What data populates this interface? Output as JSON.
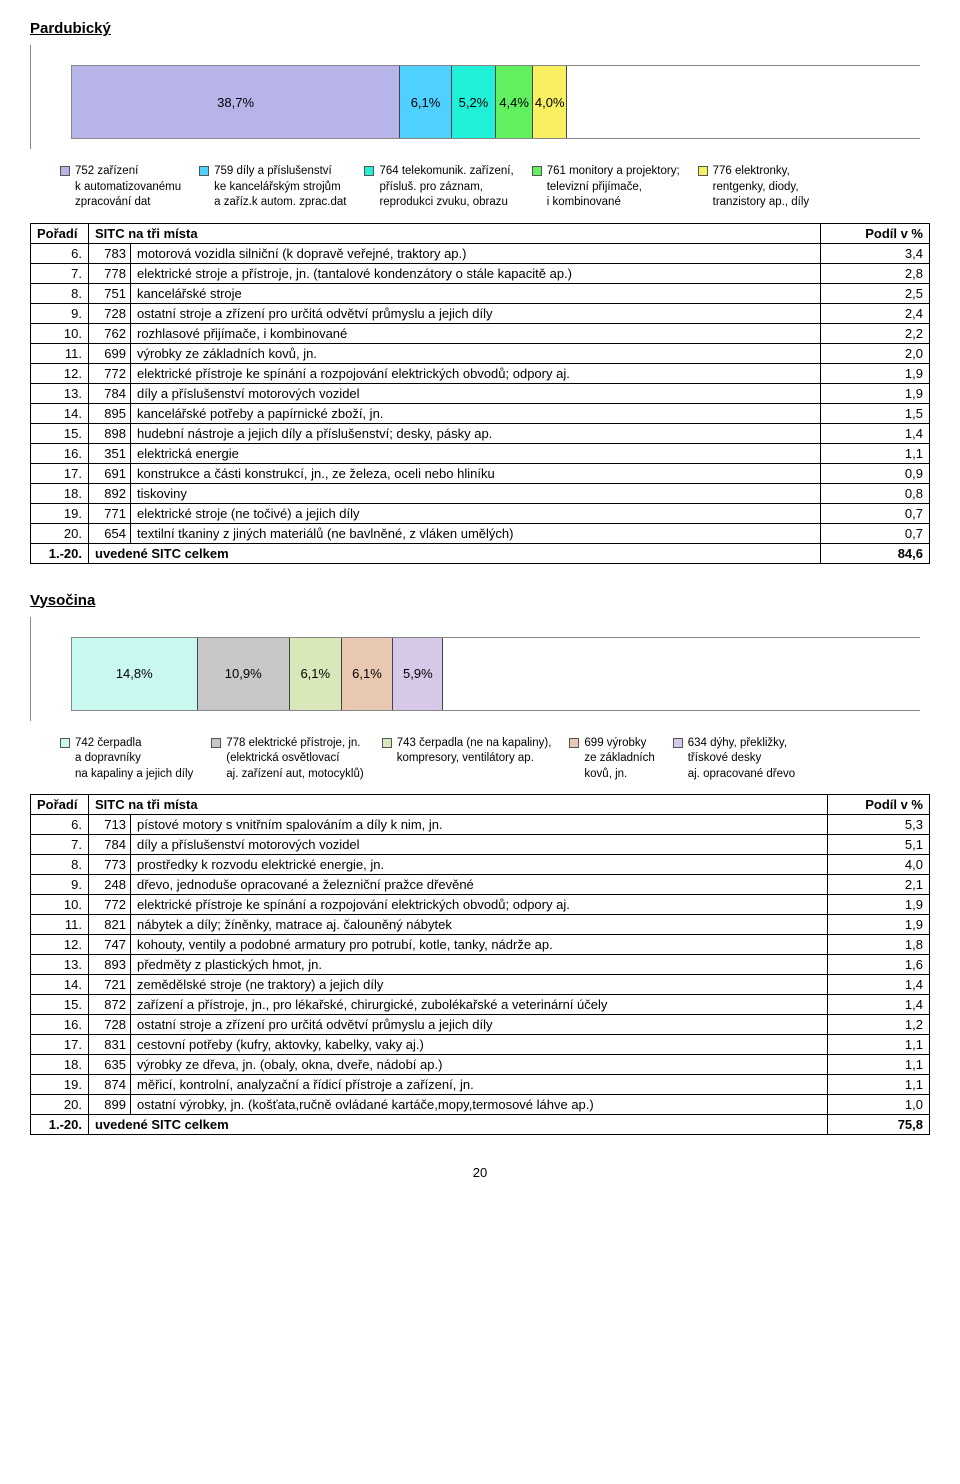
{
  "page_number": "20",
  "pardubicky": {
    "title": "Pardubický",
    "chart": {
      "type": "stacked-bar-100",
      "segments": [
        {
          "label": "38,7%",
          "value": 38.7,
          "color": "#b7b5e8"
        },
        {
          "label": "6,1%",
          "value": 6.1,
          "color": "#4fd0ff"
        },
        {
          "label": "5,2%",
          "value": 5.2,
          "color": "#20f0d8"
        },
        {
          "label": "4,4%",
          "value": 4.4,
          "color": "#60f060"
        },
        {
          "label": "4,0%",
          "value": 4.0,
          "color": "#f8f060"
        }
      ],
      "remainder_color": "#ffffff",
      "background": "#ffffff",
      "border_color": "#888888"
    },
    "legend": [
      {
        "color": "#b7b5e8",
        "text": "752 zařízení\nk automatizovanému\nzpracování dat"
      },
      {
        "color": "#4fd0ff",
        "text": "759 díly a příslušenství\nke kancelářským strojům\na zaříz.k autom. zprac.dat"
      },
      {
        "color": "#20f0d8",
        "text": "764 telekomunik. zařízení,\npřísluš. pro záznam,\nreprodukci zvuku, obrazu"
      },
      {
        "color": "#60f060",
        "text": "761 monitory a projektory;\ntelevizní přijímače,\ni kombinované"
      },
      {
        "color": "#f8f060",
        "text": "776 elektronky,\nrentgenky, diody,\ntranzistory ap., díly"
      }
    ],
    "table": {
      "header_poradi": "Pořadí",
      "header_sitc": "SITC na tři místa",
      "header_podil": "Podíl v %",
      "rows": [
        {
          "poradi": "6.",
          "code": "783",
          "desc": "motorová vozidla silniční (k dopravě veřejné, traktory ap.)",
          "podil": "3,4"
        },
        {
          "poradi": "7.",
          "code": "778",
          "desc": "elektrické stroje a přístroje, jn. (tantalové kondenzátory o stále kapacitě ap.)",
          "podil": "2,8"
        },
        {
          "poradi": "8.",
          "code": "751",
          "desc": "kancelářské stroje",
          "podil": "2,5"
        },
        {
          "poradi": "9.",
          "code": "728",
          "desc": "ostatní stroje a zřízení pro určitá odvětví průmyslu a jejich díly",
          "podil": "2,4"
        },
        {
          "poradi": "10.",
          "code": "762",
          "desc": "rozhlasové přijímače, i kombinované",
          "podil": "2,2"
        },
        {
          "poradi": "11.",
          "code": "699",
          "desc": "výrobky ze základních kovů, jn.",
          "podil": "2,0"
        },
        {
          "poradi": "12.",
          "code": "772",
          "desc": "elektrické přístroje ke spínání a rozpojování elektrických obvodů; odpory aj.",
          "podil": "1,9"
        },
        {
          "poradi": "13.",
          "code": "784",
          "desc": "díly a příslušenství motorových vozidel",
          "podil": "1,9"
        },
        {
          "poradi": "14.",
          "code": "895",
          "desc": "kancelářské potřeby a papírnické zboží, jn.",
          "podil": "1,5"
        },
        {
          "poradi": "15.",
          "code": "898",
          "desc": "hudební nástroje a jejich díly a příslušenství; desky, pásky ap.",
          "podil": "1,4"
        },
        {
          "poradi": "16.",
          "code": "351",
          "desc": "elektrická energie",
          "podil": "1,1"
        },
        {
          "poradi": "17.",
          "code": "691",
          "desc": "konstrukce a části konstrukcí, jn., ze železa, oceli nebo hliníku",
          "podil": "0,9"
        },
        {
          "poradi": "18.",
          "code": "892",
          "desc": "tiskoviny",
          "podil": "0,8"
        },
        {
          "poradi": "19.",
          "code": "771",
          "desc": "elektrické stroje (ne točivé) a jejich díly",
          "podil": "0,7"
        },
        {
          "poradi": "20.",
          "code": "654",
          "desc": "textilní tkaniny z jiných materiálů (ne bavlněné, z vláken umělých)",
          "podil": "0,7"
        }
      ],
      "total_poradi": "1.-20.",
      "total_label": "uvedené SITC celkem",
      "total_value": "84,6"
    }
  },
  "vysocina": {
    "title": "Vysočina",
    "chart": {
      "type": "stacked-bar-100",
      "segments": [
        {
          "label": "14,8%",
          "value": 14.8,
          "color": "#c8f8f0"
        },
        {
          "label": "10,9%",
          "value": 10.9,
          "color": "#c8c8c8"
        },
        {
          "label": "6,1%",
          "value": 6.1,
          "color": "#d8e8b8"
        },
        {
          "label": "6,1%",
          "value": 6.1,
          "color": "#e8c8b0"
        },
        {
          "label": "5,9%",
          "value": 5.9,
          "color": "#d8c8e8"
        }
      ],
      "remainder_color": "#ffffff",
      "background": "#ffffff",
      "border_color": "#888888"
    },
    "legend": [
      {
        "color": "#c8f8f0",
        "text": "742 čerpadla\na dopravníky\nna kapaliny a jejich díly"
      },
      {
        "color": "#c8c8c8",
        "text": "778 elektrické přístroje, jn.\n(elektrická osvětlovací\naj. zařízení aut, motocyklů)"
      },
      {
        "color": "#d8e8b8",
        "text": "743 čerpadla (ne na kapaliny),\nkompresory, ventilátory ap."
      },
      {
        "color": "#e8c8b0",
        "text": "699 výrobky\nze základních\nkovů, jn."
      },
      {
        "color": "#d8c8e8",
        "text": "634 dýhy, překližky,\ntřískové desky\naj. opracované dřevo"
      }
    ],
    "table": {
      "header_poradi": "Pořadí",
      "header_sitc": "SITC na tři místa",
      "header_podil": "Podíl v %",
      "rows": [
        {
          "poradi": "6.",
          "code": "713",
          "desc": "pístové motory s vnitřním spalováním a díly k nim, jn.",
          "podil": "5,3"
        },
        {
          "poradi": "7.",
          "code": "784",
          "desc": "díly a příslušenství motorových vozidel",
          "podil": "5,1"
        },
        {
          "poradi": "8.",
          "code": "773",
          "desc": "prostředky k rozvodu elektrické energie, jn.",
          "podil": "4,0"
        },
        {
          "poradi": "9.",
          "code": "248",
          "desc": "dřevo, jednoduše opracované a železniční pražce dřevěné",
          "podil": "2,1"
        },
        {
          "poradi": "10.",
          "code": "772",
          "desc": "elektrické přístroje ke spínání a rozpojování elektrických obvodů; odpory aj.",
          "podil": "1,9"
        },
        {
          "poradi": "11.",
          "code": "821",
          "desc": "nábytek a díly; žíněnky, matrace aj. čalouněný nábytek",
          "podil": "1,9"
        },
        {
          "poradi": "12.",
          "code": "747",
          "desc": "kohouty, ventily a podobné armatury pro potrubí, kotle, tanky, nádrže ap.",
          "podil": "1,8"
        },
        {
          "poradi": "13.",
          "code": "893",
          "desc": "předměty z plastických hmot, jn.",
          "podil": "1,6"
        },
        {
          "poradi": "14.",
          "code": "721",
          "desc": "zemědělské stroje (ne traktory) a jejich díly",
          "podil": "1,4"
        },
        {
          "poradi": "15.",
          "code": "872",
          "desc": "zařízení a přístroje, jn., pro lékařské, chirurgické, zubolékařské a veterinární účely",
          "podil": "1,4"
        },
        {
          "poradi": "16.",
          "code": "728",
          "desc": "ostatní stroje a zřízení pro určitá odvětví průmyslu a jejich díly",
          "podil": "1,2"
        },
        {
          "poradi": "17.",
          "code": "831",
          "desc": "cestovní potřeby (kufry, aktovky, kabelky, vaky aj.)",
          "podil": "1,1"
        },
        {
          "poradi": "18.",
          "code": "635",
          "desc": "výrobky ze dřeva, jn. (obaly, okna, dveře, nádobí ap.)",
          "podil": "1,1"
        },
        {
          "poradi": "19.",
          "code": "874",
          "desc": "měřicí, kontrolní, analyzační a řídicí přístroje a zařízení, jn.",
          "podil": "1,1"
        },
        {
          "poradi": "20.",
          "code": "899",
          "desc": "ostatní výrobky, jn. (košťata,ručně ovládané kartáče,mopy,termosové láhve ap.)",
          "podil": "1,0"
        }
      ],
      "total_poradi": "1.-20.",
      "total_label": "uvedené SITC celkem",
      "total_value": "75,8"
    }
  }
}
